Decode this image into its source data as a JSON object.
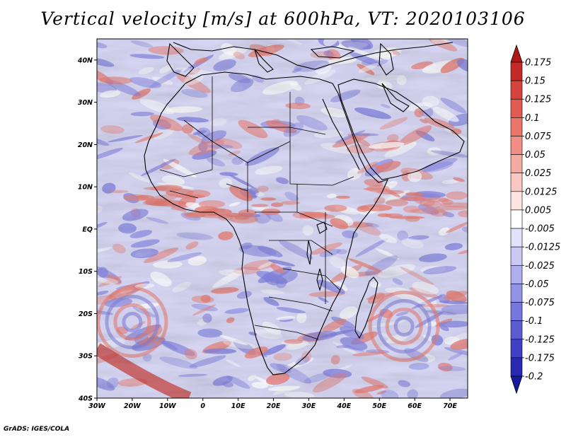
{
  "title": "Vertical velocity [m/s] at 600hPa, VT: 2020103106",
  "footer": "GrADS: IGES/COLA",
  "map": {
    "region": "Africa",
    "lat_labels": [
      "40N",
      "30N",
      "20N",
      "10N",
      "EQ",
      "10S",
      "20S",
      "30S",
      "40S"
    ],
    "lon_labels": [
      "30W",
      "20W",
      "10W",
      "0",
      "10E",
      "20E",
      "30E",
      "40E",
      "50E",
      "60E",
      "70E"
    ],
    "lat_range": [
      -40,
      45
    ],
    "lon_range": [
      -30,
      75
    ],
    "coastline_color": "#000000"
  },
  "colorbar": {
    "levels": [
      "0.175",
      "0.15",
      "0.125",
      "0.1",
      "0.075",
      "0.05",
      "0.025",
      "0.0125",
      "0.005",
      "-0.005",
      "-0.0125",
      "-0.025",
      "-0.05",
      "-0.075",
      "-0.1",
      "-0.125",
      "-0.175",
      "-0.2"
    ],
    "colors": [
      "#b01818",
      "#c42a28",
      "#d6433c",
      "#e25b52",
      "#ec756a",
      "#f28f85",
      "#f6aba2",
      "#fac8c2",
      "#fde4e0",
      "#ffffff",
      "#e2e2fa",
      "#c9c9f4",
      "#aeaeee",
      "#9393e6",
      "#7676dc",
      "#5c5cd2",
      "#4040c4",
      "#2828b2",
      "#1818a0"
    ]
  },
  "field_colors": {
    "up": "#e87e74",
    "down": "#8383e0",
    "neutral": "#ffffff"
  }
}
